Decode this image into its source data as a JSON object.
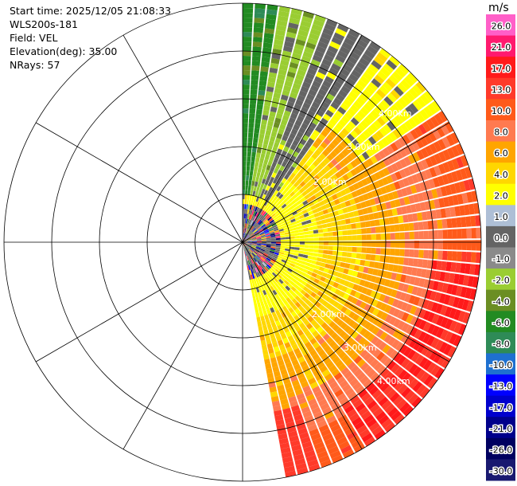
{
  "info": {
    "start_time": "Start time: 2025/12/05 21:08:33",
    "instrument": "WLS200s-181",
    "field": "Field: VEL",
    "elevation": "Elevation(deg): 35.00",
    "nrays": "NRays: 57"
  },
  "colorbar": {
    "unit": "m/s",
    "entries": [
      {
        "label": "26.0",
        "color": "#ff5fc8"
      },
      {
        "label": "21.0",
        "color": "#ff1a6e"
      },
      {
        "label": "17.0",
        "color": "#ff1a1a"
      },
      {
        "label": "13.0",
        "color": "#ff3a2a"
      },
      {
        "label": "10.0",
        "color": "#ff5a1a"
      },
      {
        "label": "8.0",
        "color": "#ff7a50"
      },
      {
        "label": "6.0",
        "color": "#ffa500"
      },
      {
        "label": "4.0",
        "color": "#ffd700"
      },
      {
        "label": "2.0",
        "color": "#ffff00"
      },
      {
        "label": "1.0",
        "color": "#aebfd6"
      },
      {
        "label": "0.0",
        "color": "#646464"
      },
      {
        "label": "-1.0",
        "color": "#8a8a8a"
      },
      {
        "label": "-2.0",
        "color": "#9acd32"
      },
      {
        "label": "-4.0",
        "color": "#6b8e23"
      },
      {
        "label": "-6.0",
        "color": "#228b22"
      },
      {
        "label": "-8.0",
        "color": "#2e8b57"
      },
      {
        "label": "-10.0",
        "color": "#1e70d0"
      },
      {
        "label": "-13.0",
        "color": "#0000ff"
      },
      {
        "label": "-17.0",
        "color": "#0000cd"
      },
      {
        "label": "-21.0",
        "color": "#00008b"
      },
      {
        "label": "-26.0",
        "color": "#000060"
      },
      {
        "label": "-30.0",
        "color": "#191970"
      }
    ]
  },
  "range_rings": [
    {
      "label": "2.00km"
    },
    {
      "label": "3.00km"
    },
    {
      "label": "4.00km"
    }
  ],
  "chart_data": {
    "type": "heatmap",
    "field": "VEL",
    "units": "m/s",
    "elevation_deg": 35.0,
    "n_rays": 57,
    "azimuth_range_deg": [
      0,
      170
    ],
    "max_range_km": 5.0,
    "ring_spacing_km": 1.0,
    "spoke_spacing_deg": 30,
    "velocity_by_range_zone": [
      {
        "range_km": [
          0.0,
          0.8
        ],
        "velocity_ms": "mixed noise -30 to 26"
      },
      {
        "range_km": [
          0.8,
          1.6
        ],
        "velocity_ms": 2.0
      },
      {
        "range_km": [
          1.6,
          2.5
        ],
        "velocity_ms": 4.0
      },
      {
        "range_km": [
          2.5,
          3.4
        ],
        "velocity_ms": 6.0
      },
      {
        "range_km": [
          3.4,
          4.2
        ],
        "velocity_ms": 8.0
      },
      {
        "range_km": [
          4.2,
          5.0
        ],
        "velocity_ms": 10.0
      }
    ],
    "north_sector_velocity_ms": [
      -6.0,
      -2.0,
      0.0
    ]
  }
}
